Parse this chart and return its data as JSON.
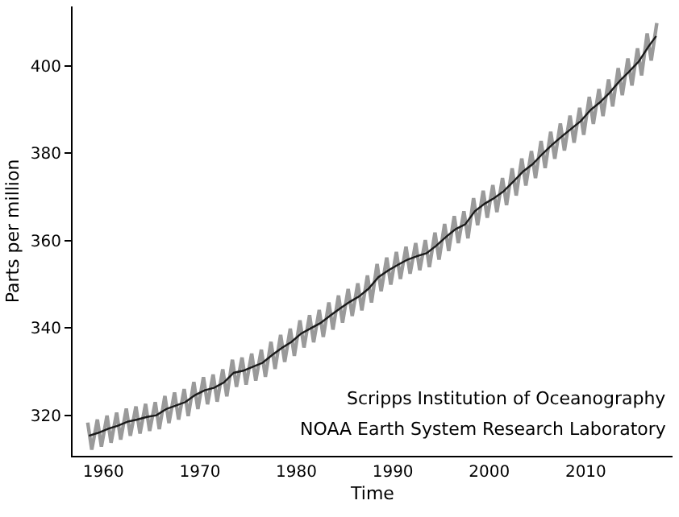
{
  "chart_data": {
    "type": "line",
    "xlabel": "Time",
    "ylabel": "Parts per million",
    "xlim": [
      1956.8,
      2019
    ],
    "xticks": [
      1960,
      1970,
      1980,
      1990,
      2000,
      2010
    ],
    "ylim": [
      310.7,
      413.6
    ],
    "yticks": [
      320,
      340,
      360,
      380,
      400
    ],
    "annotations": [
      "Scripps Institution of Oceanography",
      "NOAA Earth System Research Laboratory"
    ],
    "series": [
      {
        "color": "#9a9a9a",
        "x": [
          1958.37,
          1958.79,
          1959.37,
          1959.79,
          1960.37,
          1960.79,
          1961.37,
          1961.79,
          1962.37,
          1962.79,
          1963.37,
          1963.79,
          1964.37,
          1964.79,
          1965.37,
          1965.79,
          1966.37,
          1966.79,
          1967.37,
          1967.79,
          1968.37,
          1968.79,
          1969.37,
          1969.79,
          1970.37,
          1970.79,
          1971.37,
          1971.79,
          1972.37,
          1972.79,
          1973.37,
          1973.79,
          1974.37,
          1974.79,
          1975.37,
          1975.79,
          1976.37,
          1976.79,
          1977.37,
          1977.79,
          1978.37,
          1978.79,
          1979.37,
          1979.79,
          1980.37,
          1980.79,
          1981.37,
          1981.79,
          1982.37,
          1982.79,
          1983.37,
          1983.79,
          1984.37,
          1984.79,
          1985.37,
          1985.79,
          1986.37,
          1986.79,
          1987.37,
          1987.79,
          1988.37,
          1988.79,
          1989.37,
          1989.79,
          1990.37,
          1990.79,
          1991.37,
          1991.79,
          1992.37,
          1992.79,
          1993.37,
          1993.79,
          1994.37,
          1994.79,
          1995.37,
          1995.79,
          1996.37,
          1996.79,
          1997.37,
          1997.79,
          1998.37,
          1998.79,
          1999.37,
          1999.79,
          2000.37,
          2000.79,
          2001.37,
          2001.79,
          2002.37,
          2002.79,
          2003.37,
          2003.79,
          2004.37,
          2004.79,
          2005.37,
          2005.79,
          2006.37,
          2006.79,
          2007.37,
          2007.79,
          2008.37,
          2008.79,
          2009.37,
          2009.79,
          2010.37,
          2010.79,
          2011.37,
          2011.79,
          2012.37,
          2012.79,
          2013.37,
          2013.79,
          2014.37,
          2014.79,
          2015.37,
          2015.79,
          2016.37,
          2016.79,
          2017.37
        ],
        "values": [
          318.3,
          312.1,
          319.0,
          312.8,
          319.9,
          313.7,
          320.6,
          314.4,
          321.5,
          315.3,
          322.0,
          315.8,
          322.6,
          316.4,
          323.0,
          316.8,
          324.4,
          318.2,
          325.2,
          319.0,
          326.0,
          319.8,
          327.6,
          321.4,
          328.7,
          322.5,
          329.3,
          323.1,
          330.5,
          324.3,
          332.7,
          326.5,
          333.2,
          327.0,
          334.1,
          327.9,
          335.0,
          328.8,
          336.8,
          330.6,
          338.4,
          332.2,
          339.8,
          333.6,
          341.7,
          335.5,
          342.9,
          336.7,
          344.1,
          337.9,
          345.8,
          339.6,
          347.4,
          341.2,
          348.9,
          342.7,
          350.2,
          344.0,
          352.0,
          345.8,
          354.6,
          348.4,
          356.1,
          349.9,
          357.4,
          351.2,
          358.6,
          352.4,
          359.4,
          353.2,
          360.1,
          353.9,
          361.8,
          355.6,
          363.8,
          357.6,
          365.6,
          359.4,
          366.7,
          360.5,
          369.7,
          363.5,
          371.4,
          365.2,
          372.7,
          366.5,
          374.3,
          368.1,
          376.5,
          370.3,
          378.8,
          372.6,
          380.5,
          374.3,
          382.8,
          376.6,
          384.9,
          378.7,
          386.8,
          380.6,
          388.6,
          382.4,
          390.4,
          384.2,
          392.9,
          386.7,
          394.7,
          388.5,
          396.9,
          390.7,
          399.5,
          393.3,
          401.7,
          395.5,
          404.0,
          397.8,
          407.4,
          401.2,
          409.8
        ]
      },
      {
        "color": "#1a1a1a",
        "x": [
          1958.5,
          1959.5,
          1960.5,
          1961.5,
          1962.5,
          1963.5,
          1964.5,
          1965.5,
          1966.5,
          1967.5,
          1968.5,
          1969.5,
          1970.5,
          1971.5,
          1972.5,
          1973.5,
          1974.5,
          1975.5,
          1976.5,
          1977.5,
          1978.5,
          1979.5,
          1980.5,
          1981.5,
          1982.5,
          1983.5,
          1984.5,
          1985.5,
          1986.5,
          1987.5,
          1988.5,
          1989.5,
          1990.5,
          1991.5,
          1992.5,
          1993.5,
          1994.5,
          1995.5,
          1996.5,
          1997.5,
          1998.5,
          1999.5,
          2000.5,
          2001.5,
          2002.5,
          2003.5,
          2004.5,
          2005.5,
          2006.5,
          2007.5,
          2008.5,
          2009.5,
          2010.5,
          2011.5,
          2012.5,
          2013.5,
          2014.5,
          2015.5,
          2016.5,
          2017.3
        ],
        "values": [
          315.3,
          316.0,
          316.9,
          317.6,
          318.5,
          319.0,
          319.6,
          320.0,
          321.4,
          322.2,
          323.0,
          324.6,
          325.7,
          326.3,
          327.5,
          329.7,
          330.2,
          331.1,
          332.0,
          333.8,
          335.4,
          336.8,
          338.7,
          339.9,
          341.1,
          342.8,
          344.4,
          345.9,
          347.2,
          349.0,
          351.6,
          353.1,
          354.4,
          355.6,
          356.4,
          357.1,
          358.8,
          360.8,
          362.6,
          363.7,
          366.7,
          368.4,
          369.7,
          371.3,
          373.5,
          375.8,
          377.5,
          379.8,
          381.9,
          383.8,
          385.6,
          387.4,
          389.9,
          391.7,
          393.9,
          396.5,
          398.7,
          401.0,
          404.4,
          406.8
        ]
      }
    ]
  }
}
